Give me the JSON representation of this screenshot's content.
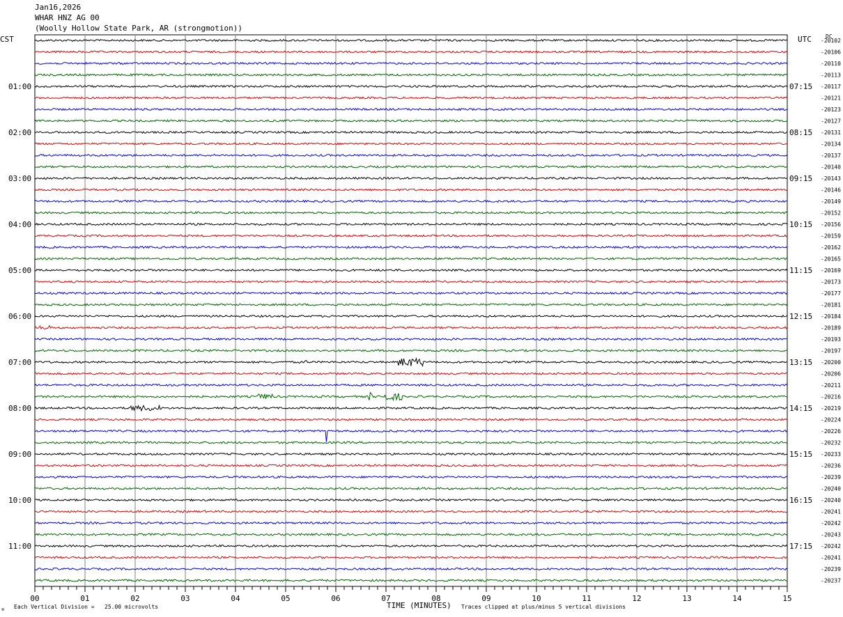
{
  "header": {
    "date": "Jan16,2026",
    "station": "WHAR HNZ AG 00",
    "location": "(Woolly Hollow State Park, AR (strongmotion))"
  },
  "axes": {
    "left_timezone": "CST",
    "right_timezone": "UTC",
    "dc_label": "DC",
    "xlabel": "TIME (MINUTES)",
    "scale_note": "Each Vertical Division =   25.00 microvolts",
    "clip_note": "Traces clipped at plus/minus 5 vertical divisions",
    "corner_mark": "⚒"
  },
  "chart_data": {
    "type": "line",
    "title": "WHAR HNZ AG 00",
    "xlabel": "TIME (MINUTES)",
    "xlim": [
      0,
      15
    ],
    "x_ticks": [
      "00",
      "01",
      "02",
      "03",
      "04",
      "05",
      "06",
      "07",
      "08",
      "09",
      "10",
      "11",
      "12",
      "13",
      "14",
      "15"
    ],
    "trace_minutes": 15,
    "trace_colors": [
      "#000000",
      "#e00000",
      "#0000e0",
      "#006400"
    ],
    "left_hour_labels": [
      "01:00",
      "02:00",
      "03:00",
      "04:00",
      "05:00",
      "06:00",
      "07:00",
      "08:00",
      "09:00",
      "10:00",
      "11:00"
    ],
    "right_hour_labels": [
      "07:15",
      "08:15",
      "09:15",
      "10:15",
      "11:15",
      "12:15",
      "13:15",
      "14:15",
      "15:15",
      "16:15",
      "17:15"
    ],
    "dc_offsets": [
      "-20102",
      "-20106",
      "-20110",
      "-20113",
      "-20117",
      "-20121",
      "-20123",
      "-20127",
      "-20131",
      "-20134",
      "-20137",
      "-20140",
      "-20143",
      "-20146",
      "-20149",
      "-20152",
      "-20156",
      "-20159",
      "-20162",
      "-20165",
      "-20169",
      "-20173",
      "-20177",
      "-20181",
      "-20184",
      "-20189",
      "-20193",
      "-20197",
      "-20200",
      "-20206",
      "-20211",
      "-20216",
      "-20219",
      "-20224",
      "-20226",
      "-20232",
      "-20233",
      "-20236",
      "-20239",
      "-20240",
      "-20240",
      "-20241",
      "-20242",
      "-20243",
      "-20242",
      "-20241",
      "-20239",
      "-20237"
    ],
    "events": [
      {
        "trace": 28,
        "minute": 7.5,
        "amplitude": 6,
        "duration_minutes": 0.5
      },
      {
        "trace": 28,
        "minute": 5.4,
        "amplitude": 4,
        "duration_minutes": 0.05
      },
      {
        "trace": 31,
        "minute": 7.1,
        "amplitude": 5,
        "duration_minutes": 0.5
      },
      {
        "trace": 31,
        "minute": 6.7,
        "amplitude": 6,
        "duration_minutes": 0.1
      },
      {
        "trace": 31,
        "minute": 4.6,
        "amplitude": 4,
        "duration_minutes": 0.3
      },
      {
        "trace": 32,
        "minute": 2.2,
        "amplitude": 4,
        "duration_minutes": 0.6
      },
      {
        "trace": 34,
        "minute": 5.8,
        "amplitude": 16,
        "duration_minutes": 0.03
      },
      {
        "trace": 25,
        "minute": 0.2,
        "amplitude": 3,
        "duration_minutes": 0.2
      }
    ]
  }
}
